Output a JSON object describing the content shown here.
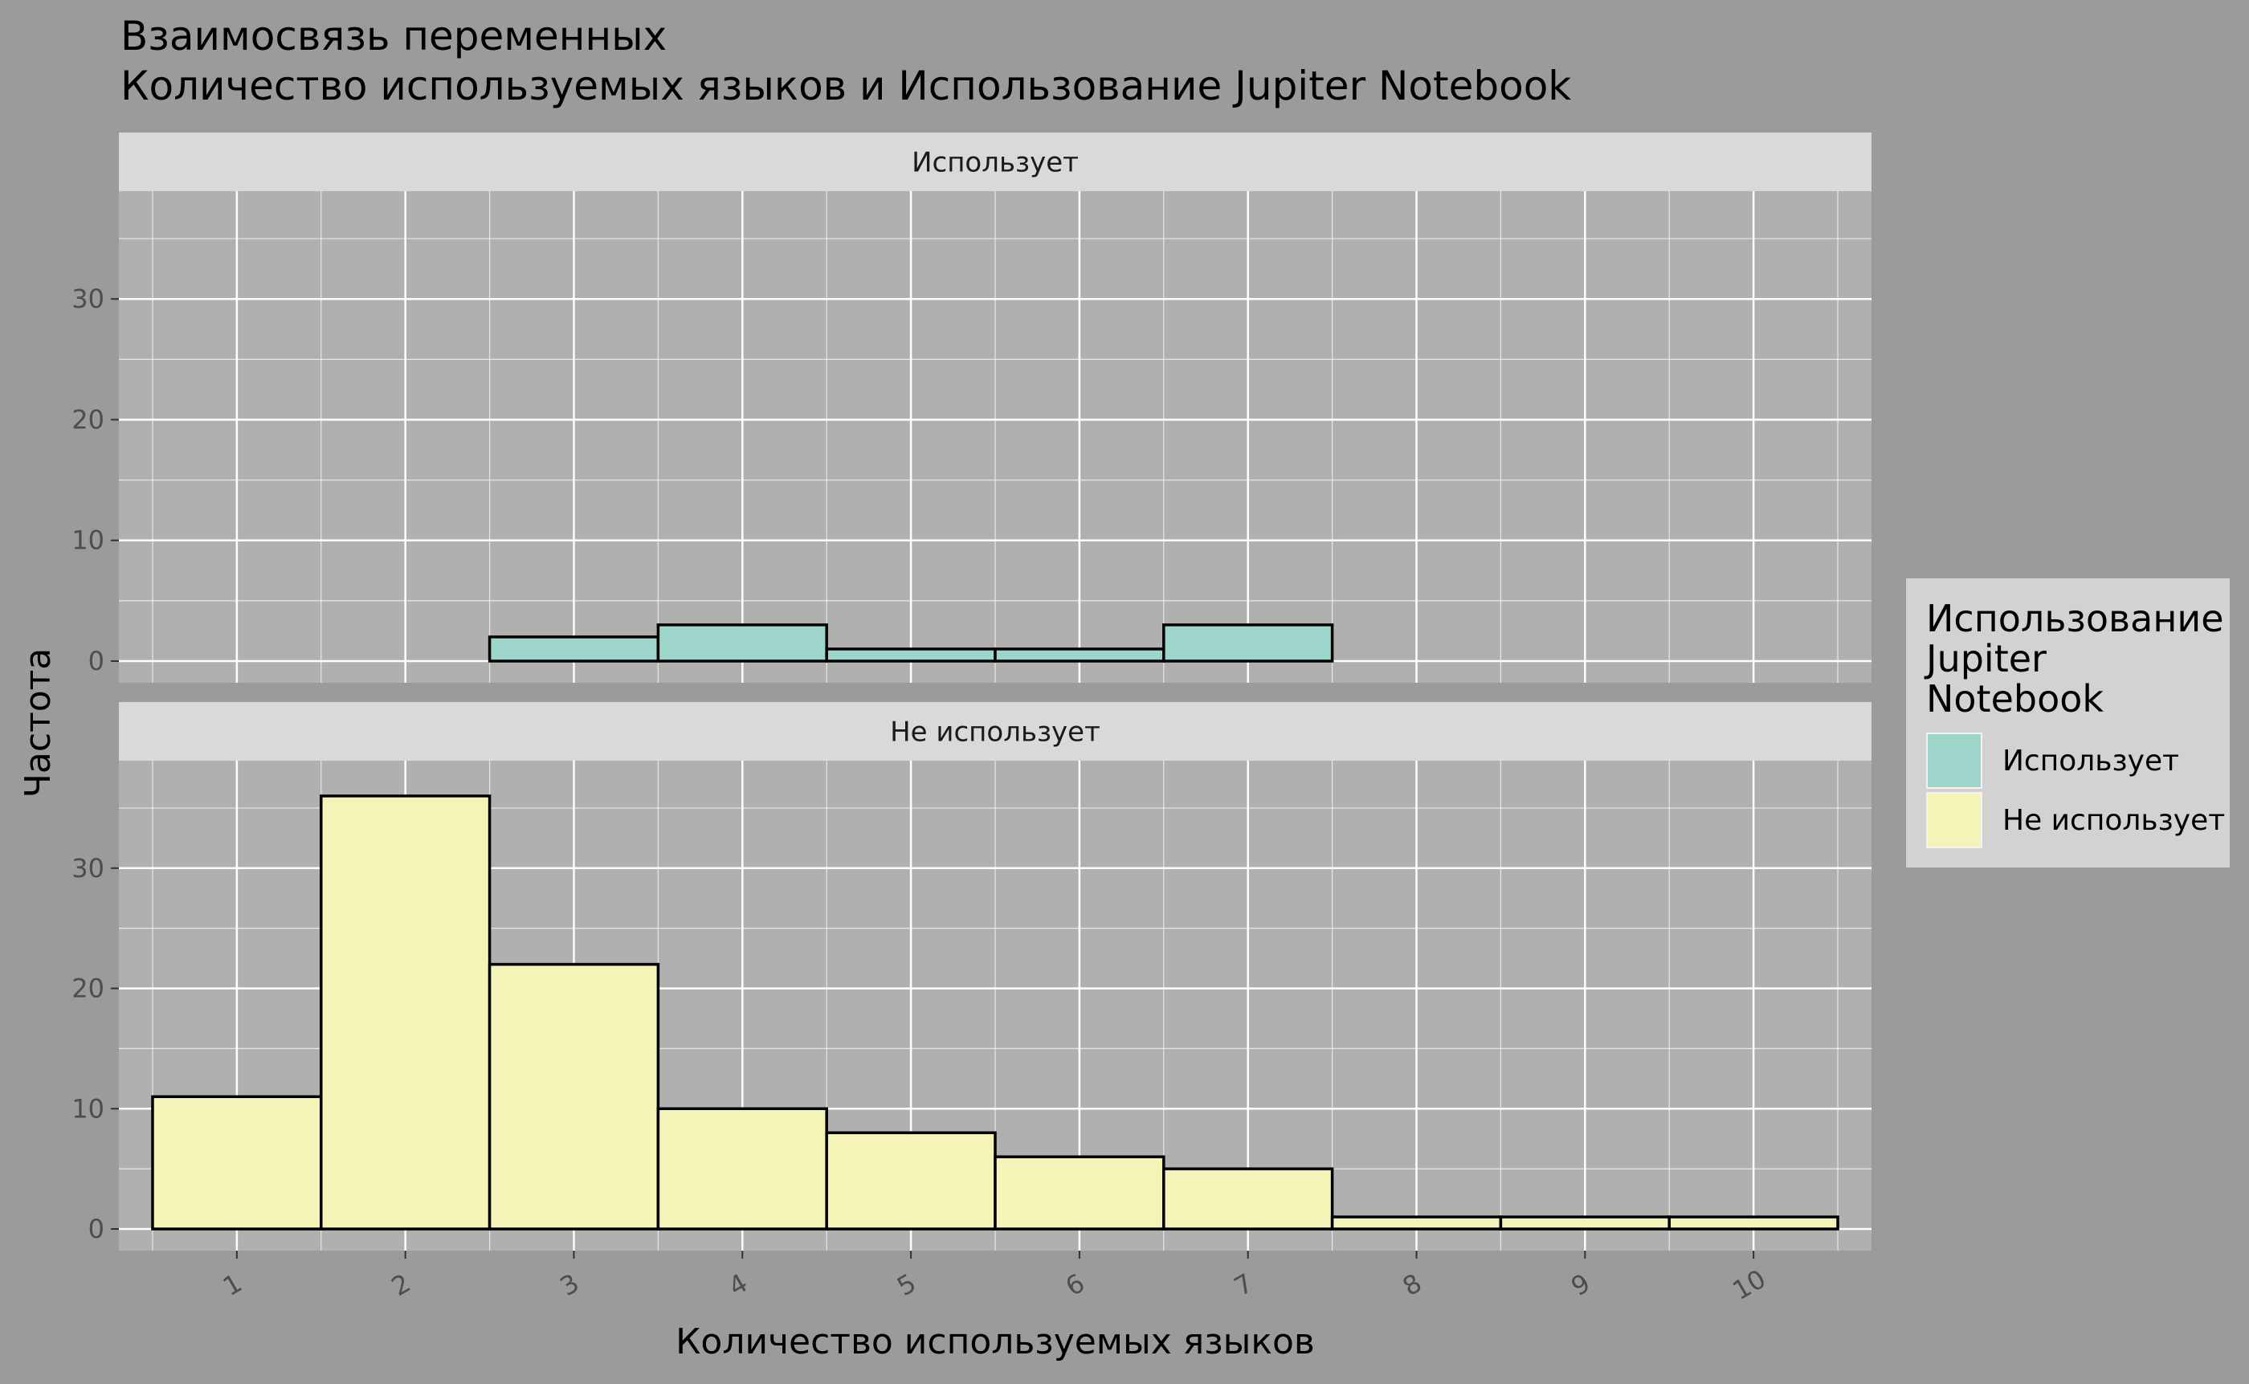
{
  "chart_data": {
    "type": "bar",
    "title_lines": [
      "Взаимосвязь переменных",
      " Количество используемых языков и Использование Jupiter Notebook"
    ],
    "xlabel": "Количество используемых языков",
    "ylabel": "Частота",
    "categories": [
      "1",
      "2",
      "3",
      "4",
      "5",
      "6",
      "7",
      "8",
      "9",
      "10"
    ],
    "ylim": [
      0,
      38
    ],
    "yticks": [
      "0",
      "10",
      "20",
      "30"
    ],
    "grid": true,
    "facets": [
      {
        "label": "Использует",
        "series": "Использует",
        "values": [
          0,
          0,
          2,
          3,
          1,
          1,
          3,
          0,
          0,
          0
        ]
      },
      {
        "label": "Не использует",
        "series": "Не использует",
        "values": [
          11,
          36,
          22,
          10,
          8,
          6,
          5,
          1,
          1,
          1
        ]
      }
    ],
    "legend": {
      "title_lines": [
        "Использование",
        "Jupiter",
        "Notebook"
      ],
      "position": "right",
      "items": [
        {
          "label": "Использует",
          "color": "#9dd5cb"
        },
        {
          "label": "Не использует",
          "color": "#f4f3b8"
        }
      ]
    },
    "colors": {
      "page_background": "#9b9b9b",
      "panel_background": "#b0b0b0",
      "strip_background": "#d9d9d9",
      "legend_background": "#d2d2d2",
      "grid": "#ffffff",
      "bar_outline": "#000000"
    }
  }
}
